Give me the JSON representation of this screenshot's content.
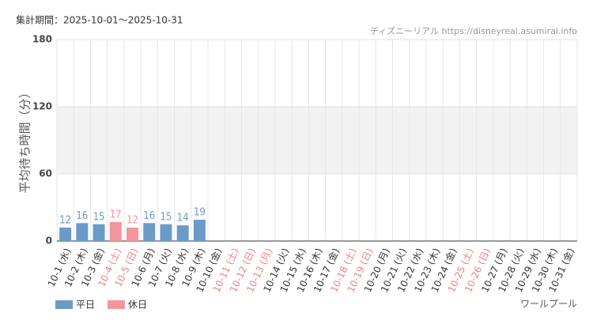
{
  "chart_data": {
    "type": "bar",
    "subtitle": "集計期間：2025-10-01～2025-10-31",
    "source": "ディズニーリアル https://disneyreal.asumirai.info",
    "y_label": "平均待ち時間（分）",
    "attraction": "ワールプール",
    "categories": [
      "10-1 (水)",
      "10-2 (木)",
      "10-3 (金)",
      "10-4 (土)",
      "10-5 (日)",
      "10-6 (月)",
      "10-7 (火)",
      "10-8 (水)",
      "10-9 (木)",
      "10-10 (金)",
      "10-11 (土)",
      "10-12 (日)",
      "10-13 (月)",
      "10-14 (火)",
      "10-15 (水)",
      "10-16 (木)",
      "10-17 (金)",
      "10-18 (土)",
      "10-19 (日)",
      "10-20 (月)",
      "10-21 (火)",
      "10-22 (水)",
      "10-23 (木)",
      "10-24 (金)",
      "10-25 (土)",
      "10-26 (日)",
      "10-27 (月)",
      "10-28 (火)",
      "10-29 (水)",
      "10-30 (木)",
      "10-31 (金)"
    ],
    "category_label_colors": [
      "#333",
      "#333",
      "#333",
      "#f08080",
      "#f08080",
      "#333",
      "#333",
      "#333",
      "#333",
      "#333",
      "#f08080",
      "#f08080",
      "#f08080",
      "#333",
      "#333",
      "#333",
      "#333",
      "#f08080",
      "#f08080",
      "#333",
      "#333",
      "#333",
      "#333",
      "#333",
      "#f08080",
      "#f08080",
      "#333",
      "#333",
      "#333",
      "#333",
      "#333"
    ],
    "series": [
      {
        "name": "平日",
        "color": "#6b9ac8",
        "values": [
          12,
          16,
          15,
          null,
          null,
          16,
          15,
          14,
          19,
          null,
          null,
          null,
          null,
          null,
          null,
          null,
          null,
          null,
          null,
          null,
          null,
          null,
          null,
          null,
          null,
          null,
          null,
          null,
          null,
          null,
          null
        ]
      },
      {
        "name": "休日",
        "color": "#f4959a",
        "values": [
          null,
          null,
          null,
          17,
          12,
          null,
          null,
          null,
          null,
          null,
          null,
          null,
          null,
          null,
          null,
          null,
          null,
          null,
          null,
          null,
          null,
          null,
          null,
          null,
          null,
          null,
          null,
          null,
          null,
          null,
          null
        ]
      }
    ],
    "ylim": [
      0,
      180
    ],
    "yticks": [
      0,
      60,
      120,
      180
    ],
    "shaded_band": [
      60,
      120
    ],
    "grid": true
  }
}
